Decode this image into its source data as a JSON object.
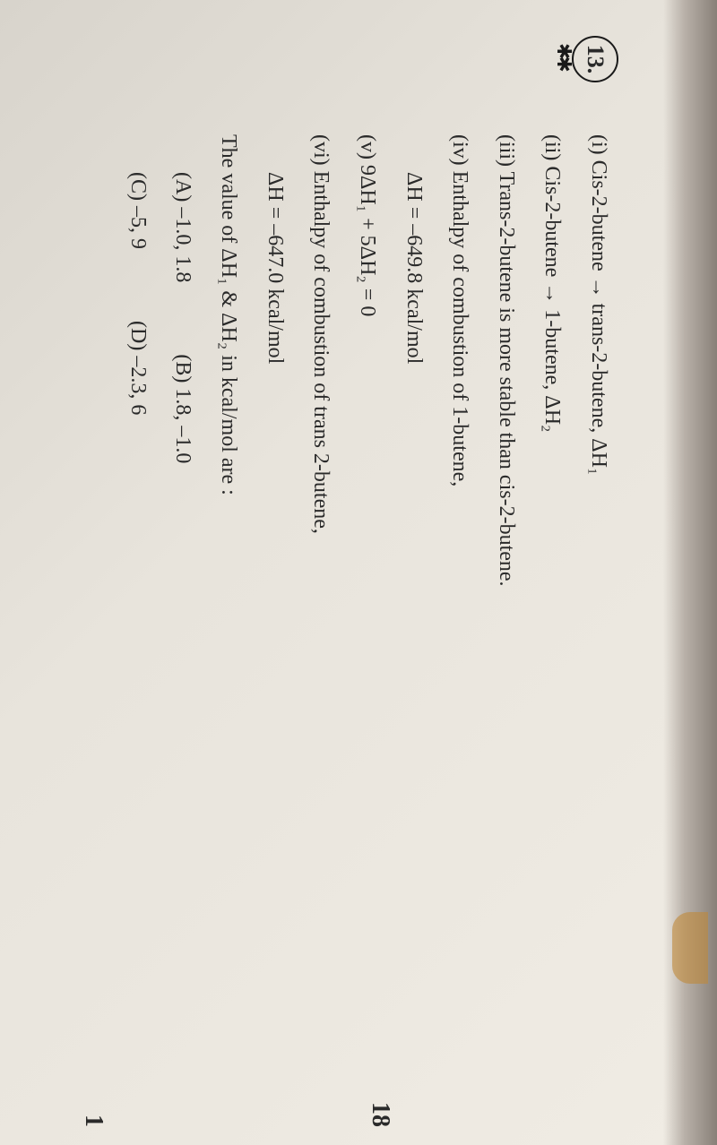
{
  "question_number": "13.",
  "lines": {
    "i": "(i) Cis-2-butene → trans-2-butene, ΔH₁",
    "ii": "(ii) Cis-2-butene → 1-butene, ΔH₂",
    "iii": "(iii) Trans-2-butene is more stable than cis-2-butene.",
    "iv": "(iv) Enthalpy of combustion of 1-butene,",
    "iv_val": "ΔH = –649.8 kcal/mol",
    "v": "(v) 9ΔH₁ + 5ΔH₂ = 0",
    "vi": "(vi) Enthalpy of combustion of trans 2-butene,",
    "vi_val": "ΔH = –647.0 kcal/mol",
    "prompt": "The value of ΔH₁ & ΔH₂ in kcal/mol are :"
  },
  "options": {
    "a": "(A) –1.0, 1.8",
    "b": "(B) 1.8, –1.0",
    "c": "(C) –5, 9",
    "d": "(D) –2.3, 6"
  },
  "margin": {
    "n1": "18",
    "n2": "1"
  },
  "style": {
    "font_size_body": 24,
    "font_size_qnum": 26,
    "text_color": "#2a2a2a",
    "bg_gradient_start": "#d8d4cc",
    "bg_gradient_end": "#f0ece4",
    "circle_border_color": "#1a1a1a"
  }
}
